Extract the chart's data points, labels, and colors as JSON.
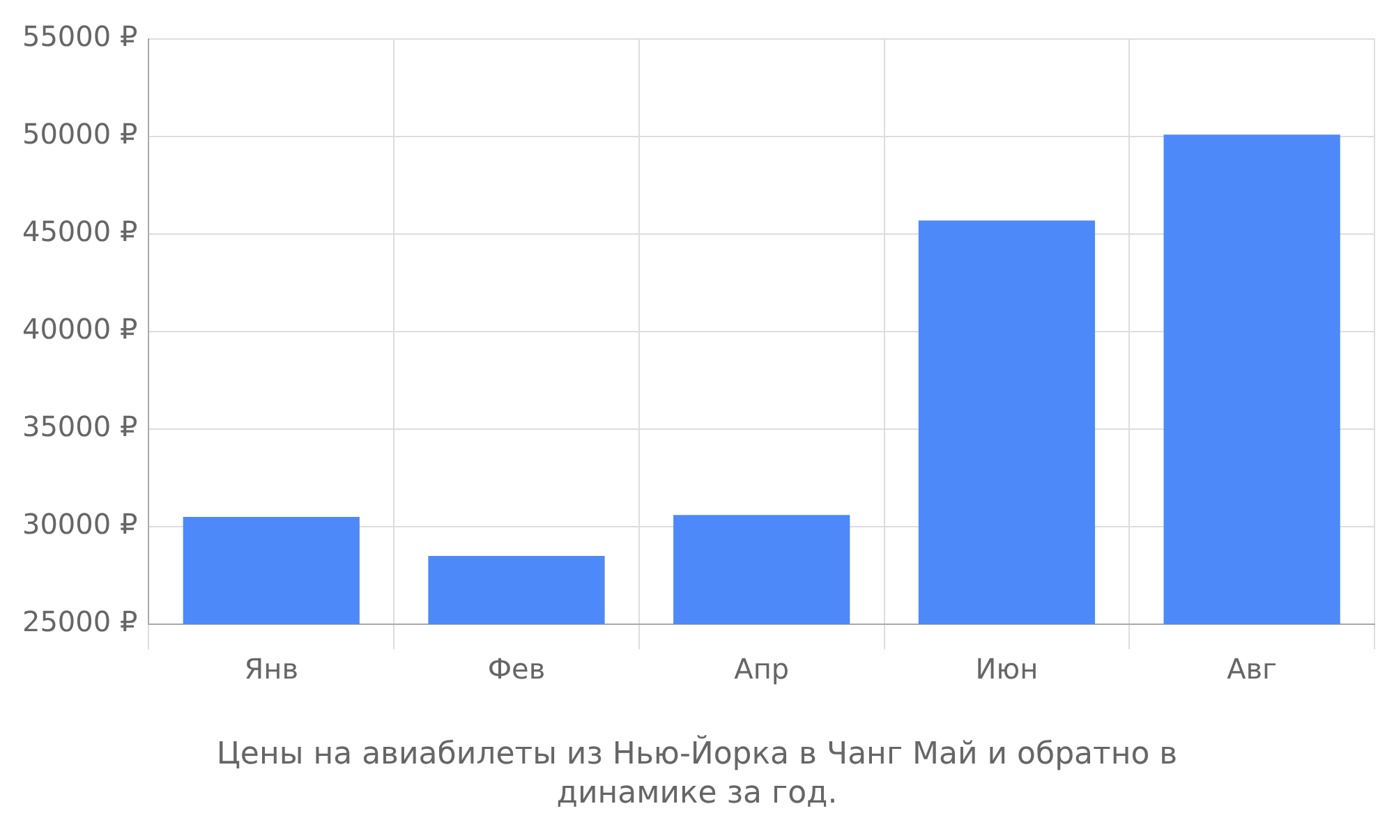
{
  "chart_data": {
    "type": "bar",
    "title": "Цены на авиабилеты из Нью-Йорка в Чанг Май и обратно в динамике за год.",
    "categories": [
      "Янв",
      "Фев",
      "Апр",
      "Июн",
      "Авг"
    ],
    "values": [
      30500,
      28500,
      30600,
      45700,
      50100
    ],
    "color": "#4d89f9",
    "ylim": [
      25000,
      55000
    ],
    "yticks": [
      {
        "value": 25000,
        "label": "25000 ₽"
      },
      {
        "value": 30000,
        "label": "30000 ₽"
      },
      {
        "value": 35000,
        "label": "35000 ₽"
      },
      {
        "value": 40000,
        "label": "40000 ₽"
      },
      {
        "value": 45000,
        "label": "45000 ₽"
      },
      {
        "value": 50000,
        "label": "50000 ₽"
      },
      {
        "value": 55000,
        "label": "55000 ₽"
      }
    ],
    "grid": true
  }
}
